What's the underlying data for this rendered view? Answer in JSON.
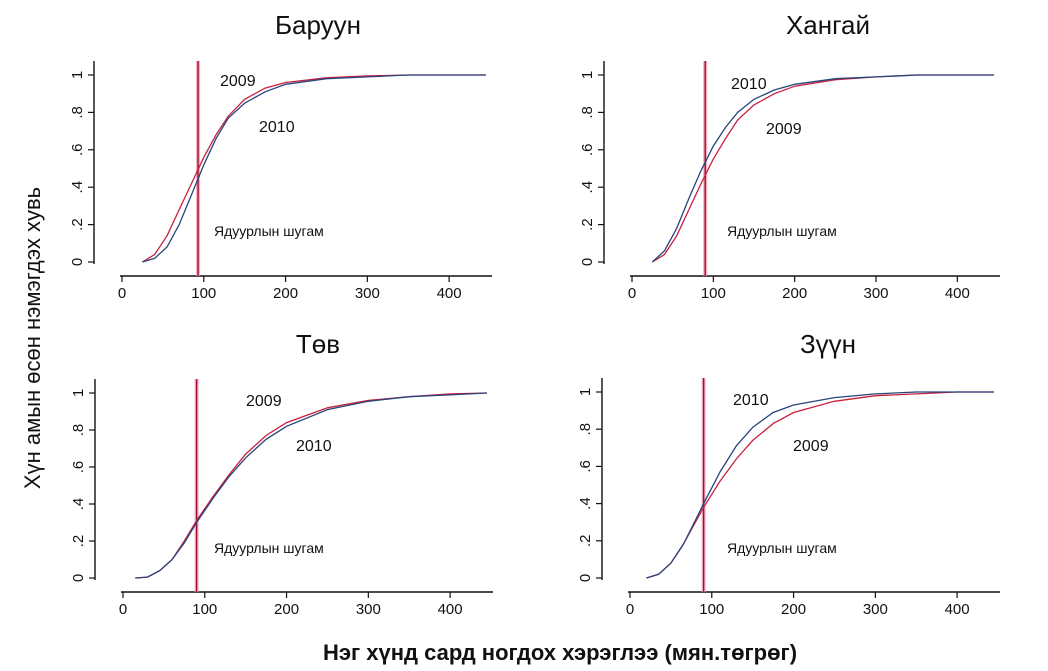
{
  "figure": {
    "ylabel": "Хүн амын өсөн нэмэгдэх хувь",
    "xlabel": "Нэг хүнд сард ногдох хэрэглээ  (мян.төгрөг)"
  },
  "colors": {
    "series_2009": "#c8203c",
    "series_2010": "#27457e",
    "poverty_line": "#9e1035",
    "poverty_band": "#f29bb0",
    "axis": "#111111"
  },
  "chart_data": [
    {
      "type": "line",
      "title": "Баруун",
      "xlim": [
        0,
        450
      ],
      "ylim": [
        0,
        1
      ],
      "xticks": [
        0,
        100,
        200,
        300,
        400
      ],
      "xtick_labels": [
        "0",
        "100",
        "200",
        "300",
        "400"
      ],
      "yticks": [
        0,
        0.2,
        0.4,
        0.6,
        0.8,
        1
      ],
      "ytick_labels": [
        "0",
        ".2",
        ".4",
        ".6",
        ".8",
        "1"
      ],
      "poverty_line": 93,
      "poverty_label": "Ядуурлын шугам",
      "series": [
        {
          "name": "2009",
          "x": [
            25,
            40,
            55,
            70,
            85,
            100,
            115,
            130,
            150,
            175,
            200,
            250,
            300,
            350,
            400,
            445
          ],
          "y": [
            0.0,
            0.04,
            0.14,
            0.28,
            0.42,
            0.56,
            0.68,
            0.78,
            0.87,
            0.93,
            0.96,
            0.985,
            0.995,
            1.0,
            1.0,
            1.0
          ]
        },
        {
          "name": "2010",
          "x": [
            25,
            40,
            55,
            70,
            85,
            100,
            115,
            130,
            150,
            175,
            200,
            250,
            300,
            350,
            400,
            445
          ],
          "y": [
            0.0,
            0.02,
            0.08,
            0.2,
            0.36,
            0.52,
            0.66,
            0.77,
            0.85,
            0.91,
            0.95,
            0.98,
            0.99,
            1.0,
            1.0,
            1.0
          ]
        }
      ],
      "labels": [
        {
          "text": "2009",
          "series": "2009"
        },
        {
          "text": "2010",
          "series": "2010"
        }
      ]
    },
    {
      "type": "line",
      "title": "Хангай",
      "xlim": [
        0,
        450
      ],
      "ylim": [
        0,
        1
      ],
      "xticks": [
        0,
        100,
        200,
        300,
        400
      ],
      "xtick_labels": [
        "0",
        "100",
        "200",
        "300",
        "400"
      ],
      "yticks": [
        0,
        0.2,
        0.4,
        0.6,
        0.8,
        1
      ],
      "ytick_labels": [
        "0",
        ".2",
        ".4",
        ".6",
        ".8",
        "1"
      ],
      "poverty_line": 90,
      "poverty_label": "Ядуурлын шугам",
      "series": [
        {
          "name": "2009",
          "x": [
            25,
            40,
            55,
            70,
            85,
            100,
            115,
            130,
            150,
            175,
            200,
            250,
            300,
            350,
            400,
            445
          ],
          "y": [
            0.0,
            0.04,
            0.14,
            0.28,
            0.42,
            0.55,
            0.66,
            0.76,
            0.84,
            0.9,
            0.94,
            0.975,
            0.99,
            1.0,
            1.0,
            1.0
          ]
        },
        {
          "name": "2010",
          "x": [
            25,
            40,
            55,
            70,
            85,
            100,
            115,
            130,
            150,
            175,
            200,
            250,
            300,
            350,
            400,
            445
          ],
          "y": [
            0.0,
            0.06,
            0.18,
            0.34,
            0.49,
            0.62,
            0.72,
            0.8,
            0.87,
            0.92,
            0.95,
            0.98,
            0.99,
            1.0,
            1.0,
            1.0
          ]
        }
      ],
      "labels": [
        {
          "text": "2010",
          "series": "2010"
        },
        {
          "text": "2009",
          "series": "2009"
        }
      ]
    },
    {
      "type": "line",
      "title": "Төв",
      "xlim": [
        0,
        450
      ],
      "ylim": [
        0,
        1
      ],
      "xticks": [
        0,
        100,
        200,
        300,
        400
      ],
      "xtick_labels": [
        "0",
        "100",
        "200",
        "300",
        "400"
      ],
      "yticks": [
        0,
        0.2,
        0.4,
        0.6,
        0.8,
        1
      ],
      "ytick_labels": [
        "0",
        ".2",
        ".4",
        ".6",
        ".8",
        "1"
      ],
      "poverty_line": 90,
      "poverty_label": "Ядуурлын шугам",
      "series": [
        {
          "name": "2009",
          "x": [
            15,
            30,
            45,
            60,
            75,
            90,
            110,
            130,
            150,
            175,
            200,
            250,
            300,
            350,
            400,
            445
          ],
          "y": [
            0.0,
            0.005,
            0.04,
            0.1,
            0.2,
            0.31,
            0.44,
            0.56,
            0.67,
            0.77,
            0.84,
            0.92,
            0.96,
            0.98,
            0.995,
            1.0
          ]
        },
        {
          "name": "2010",
          "x": [
            15,
            30,
            45,
            60,
            75,
            90,
            110,
            130,
            150,
            175,
            200,
            250,
            300,
            350,
            400,
            445
          ],
          "y": [
            0.0,
            0.005,
            0.04,
            0.1,
            0.19,
            0.3,
            0.43,
            0.55,
            0.65,
            0.75,
            0.82,
            0.91,
            0.955,
            0.98,
            0.99,
            1.0
          ]
        }
      ],
      "labels": [
        {
          "text": "2009",
          "series": "2009"
        },
        {
          "text": "2010",
          "series": "2010"
        }
      ]
    },
    {
      "type": "line",
      "title": "Зүүн",
      "xlim": [
        0,
        450
      ],
      "ylim": [
        0,
        1
      ],
      "xticks": [
        0,
        100,
        200,
        300,
        400
      ],
      "xtick_labels": [
        "0",
        "100",
        "200",
        "300",
        "400"
      ],
      "yticks": [
        0,
        0.2,
        0.4,
        0.6,
        0.8,
        1
      ],
      "ytick_labels": [
        "0",
        ".2",
        ".4",
        ".6",
        ".8",
        "1"
      ],
      "poverty_line": 90,
      "poverty_label": "Ядуурлын шугам",
      "series": [
        {
          "name": "2009",
          "x": [
            20,
            35,
            50,
            65,
            80,
            90,
            110,
            130,
            150,
            175,
            200,
            250,
            300,
            350,
            400,
            445
          ],
          "y": [
            0.0,
            0.02,
            0.08,
            0.18,
            0.3,
            0.38,
            0.52,
            0.64,
            0.74,
            0.83,
            0.89,
            0.95,
            0.98,
            0.99,
            1.0,
            1.0
          ]
        },
        {
          "name": "2010",
          "x": [
            20,
            35,
            50,
            65,
            80,
            90,
            110,
            130,
            150,
            175,
            200,
            250,
            300,
            350,
            400,
            445
          ],
          "y": [
            0.0,
            0.02,
            0.08,
            0.18,
            0.31,
            0.4,
            0.57,
            0.71,
            0.81,
            0.89,
            0.93,
            0.97,
            0.99,
            1.0,
            1.0,
            1.0
          ]
        }
      ],
      "labels": [
        {
          "text": "2010",
          "series": "2010"
        },
        {
          "text": "2009",
          "series": "2009"
        }
      ]
    }
  ]
}
